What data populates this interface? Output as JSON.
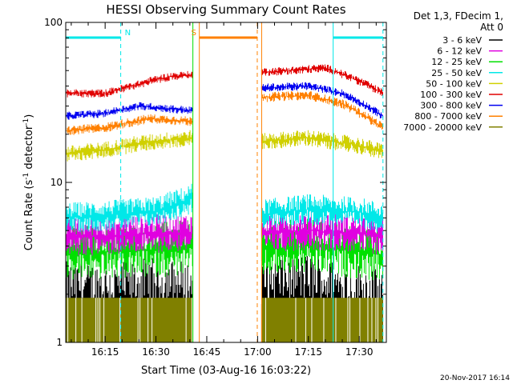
{
  "chart_data": {
    "type": "line",
    "title": "HESSI Observing Summary Count Rates",
    "xlabel": "Start Time (03-Aug-16 16:03:22)",
    "ylabel_parts": [
      "Count Rate (s",
      "-1",
      " detector",
      "-1",
      ")"
    ],
    "y_scale": "log",
    "ylim": [
      1,
      100
    ],
    "y_tick_labels": [
      "1",
      "10",
      "100"
    ],
    "x_start_minutes": 3.37,
    "x_end_minutes": 98.0,
    "x_ticks": [
      {
        "minutes": 15,
        "label": "16:15"
      },
      {
        "minutes": 30,
        "label": "16:30"
      },
      {
        "minutes": 45,
        "label": "16:45"
      },
      {
        "minutes": 60,
        "label": "17:00"
      },
      {
        "minutes": 75,
        "label": "17:15"
      },
      {
        "minutes": 90,
        "label": "17:30"
      }
    ],
    "legend_header": [
      "Det 1,3, FDecim 1,",
      "Att 0"
    ],
    "footer_date": "20-Nov-2017 16:14",
    "segments": [
      [
        3.4,
        40.9
      ],
      [
        61.2,
        97.0
      ]
    ],
    "series": [
      {
        "name": "3 - 6 keV",
        "color": "#000000",
        "noise": 0.7,
        "floor": 1.0,
        "values": [
          [
            3.4,
            1.6
          ],
          [
            20,
            1.6
          ],
          [
            30,
            1.7
          ],
          [
            40.9,
            1.6
          ],
          [
            61.2,
            1.7
          ],
          [
            75,
            1.8
          ],
          [
            85,
            1.6
          ],
          [
            97,
            1.5
          ]
        ]
      },
      {
        "name": "6 - 12 keV",
        "color": "#e000e0",
        "noise": 0.28,
        "floor": 0,
        "values": [
          [
            3.4,
            4.5
          ],
          [
            20,
            4.7
          ],
          [
            30,
            4.8
          ],
          [
            40.9,
            4.9
          ],
          [
            61.2,
            4.8
          ],
          [
            75,
            5.0
          ],
          [
            90,
            4.8
          ],
          [
            97,
            4.6
          ]
        ]
      },
      {
        "name": "12 - 25 keV",
        "color": "#00e000",
        "noise": 0.4,
        "floor": 0,
        "values": [
          [
            3.4,
            3.6
          ],
          [
            20,
            3.7
          ],
          [
            30,
            3.8
          ],
          [
            40.9,
            3.9
          ],
          [
            61.2,
            3.8
          ],
          [
            75,
            4.0
          ],
          [
            90,
            3.7
          ],
          [
            97,
            3.5
          ]
        ]
      },
      {
        "name": "25 - 50 keV",
        "color": "#00e8e8",
        "noise": 0.22,
        "floor": 0,
        "values": [
          [
            3.4,
            6.0
          ],
          [
            20,
            6.3
          ],
          [
            30,
            6.6
          ],
          [
            38,
            7.5
          ],
          [
            40.9,
            8.0
          ],
          [
            61.2,
            6.3
          ],
          [
            75,
            6.8
          ],
          [
            90,
            6.5
          ],
          [
            97,
            6.0
          ]
        ]
      },
      {
        "name": "50 - 100 keV",
        "color": "#d0d000",
        "noise": 0.12,
        "floor": 0,
        "values": [
          [
            3.4,
            15
          ],
          [
            15,
            16
          ],
          [
            25,
            17.5
          ],
          [
            30,
            18
          ],
          [
            40.9,
            19
          ],
          [
            61.2,
            18
          ],
          [
            75,
            19
          ],
          [
            90,
            17
          ],
          [
            97,
            15.5
          ]
        ]
      },
      {
        "name": "100 - 300 keV",
        "color": "#e00000",
        "noise": 0.06,
        "floor": 0,
        "values": [
          [
            3.4,
            36
          ],
          [
            15,
            36
          ],
          [
            25,
            41
          ],
          [
            30,
            44
          ],
          [
            35,
            46
          ],
          [
            40.9,
            47
          ],
          [
            61.2,
            49
          ],
          [
            70,
            50
          ],
          [
            80,
            52
          ],
          [
            90,
            43
          ],
          [
            97,
            36
          ]
        ]
      },
      {
        "name": "300 - 800 keV",
        "color": "#0000f0",
        "noise": 0.06,
        "floor": 0,
        "values": [
          [
            3.4,
            26
          ],
          [
            15,
            27
          ],
          [
            25,
            30
          ],
          [
            40.9,
            28
          ],
          [
            61.2,
            39
          ],
          [
            75,
            40
          ],
          [
            85,
            36
          ],
          [
            97,
            26
          ]
        ]
      },
      {
        "name": "800 - 7000 keV",
        "color": "#ff8000",
        "noise": 0.07,
        "floor": 0,
        "values": [
          [
            3.4,
            21
          ],
          [
            15,
            22
          ],
          [
            28,
            25
          ],
          [
            40.9,
            24
          ],
          [
            61.2,
            34
          ],
          [
            75,
            35
          ],
          [
            85,
            31
          ],
          [
            97,
            22
          ]
        ]
      },
      {
        "name": "7000 - 20000 keV",
        "color": "#808000",
        "noise": 0.0,
        "floor": 1.0,
        "fill": true,
        "values": [
          [
            3.4,
            1.9
          ],
          [
            97,
            1.9
          ]
        ]
      }
    ],
    "flags": [
      {
        "label": "N",
        "color": "#00e8e8",
        "start": 3.4,
        "end": 19.6,
        "end_dashed": true
      },
      {
        "label": "S",
        "color": "#ff8000",
        "start": 42.8,
        "end": 59.9,
        "start_solid": true,
        "end_dashed": true
      },
      {
        "label": "",
        "color": "#00e8e8",
        "start": 82.3,
        "end": 97.0,
        "start_solid": true,
        "end_dashed": true
      }
    ],
    "markers": [
      {
        "minutes": 40.9,
        "color": "#00e000",
        "style": "solid"
      },
      {
        "minutes": 61.2,
        "color": "#ff8000",
        "style": "solid"
      }
    ]
  }
}
